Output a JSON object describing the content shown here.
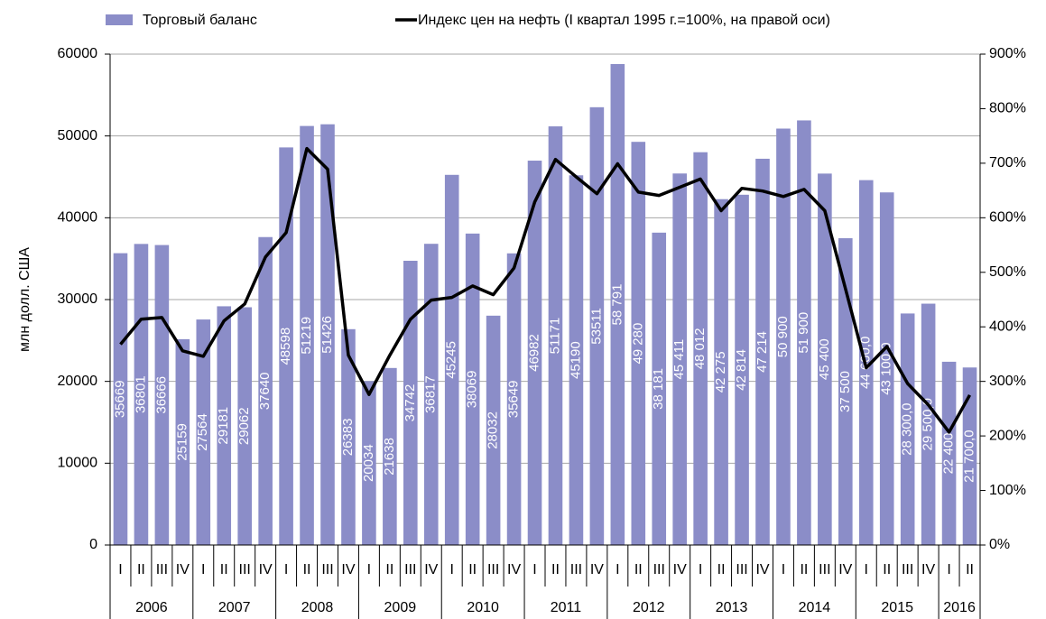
{
  "chart_data": {
    "type": "bar_line",
    "categories": [
      "I",
      "II",
      "III",
      "IV",
      "I",
      "II",
      "III",
      "IV",
      "I",
      "II",
      "III",
      "IV",
      "I",
      "II",
      "III",
      "IV",
      "I",
      "II",
      "III",
      "IV",
      "I",
      "II",
      "III",
      "IV",
      "I",
      "II",
      "III",
      "IV",
      "I",
      "II",
      "III",
      "IV",
      "I",
      "II",
      "III",
      "IV",
      "I",
      "II",
      "III",
      "IV",
      "I",
      "II"
    ],
    "x_groups": [
      "2006",
      "2007",
      "2008",
      "2009",
      "2010",
      "2011",
      "2012",
      "2013",
      "2014",
      "2015",
      "2016"
    ],
    "ylabel": "млн  долл. США",
    "ylim": [
      0,
      60000
    ],
    "yticks": [
      0,
      10000,
      20000,
      30000,
      40000,
      50000,
      60000
    ],
    "y2lim": [
      0,
      900
    ],
    "y2ticks": [
      {
        "value": 0,
        "label": "0%"
      },
      {
        "value": 100,
        "label": "100%"
      },
      {
        "value": 200,
        "label": "200%"
      },
      {
        "value": 300,
        "label": "300%"
      },
      {
        "value": 400,
        "label": "400%"
      },
      {
        "value": 500,
        "label": "500%"
      },
      {
        "value": 600,
        "label": "600%"
      },
      {
        "value": 700,
        "label": "700%"
      },
      {
        "value": 800,
        "label": "800%"
      },
      {
        "value": 900,
        "label": "900%"
      }
    ],
    "grid": true,
    "series": [
      {
        "name": "Торговый баланс",
        "color": "#8b8dc8",
        "values": [
          35669,
          36801,
          36666,
          25159,
          27564,
          29181,
          29062,
          37640,
          48598,
          51219,
          51426,
          26383,
          20034,
          21638,
          34742,
          36817,
          45245,
          38069,
          28032,
          35649,
          46982,
          51171,
          45190,
          53511,
          58791,
          49280,
          38181,
          45411,
          48012,
          42275,
          42814,
          47214,
          50900,
          51900,
          45400,
          37500,
          44600,
          43100,
          28300,
          29500,
          22400,
          21700
        ],
        "value_labels": [
          "35669",
          "36801",
          "36666",
          "25159",
          "27564",
          "29181",
          "29062",
          "37640",
          "48598",
          "51219",
          "51426",
          "26383",
          "20034",
          "21638",
          "34742",
          "36817",
          "45245",
          "38069",
          "28032",
          "35649",
          "46982",
          "51171",
          "45190",
          "53511",
          "58 791",
          "49 280",
          "38 181",
          "45 411",
          "48 012",
          "42 275",
          "42 814",
          "47 214",
          "50 900",
          "51 900",
          "45 400",
          "37 500",
          "44 600,0",
          "43 100,0",
          "28 300,0",
          "29 500,0",
          "22 400",
          "21 700,0"
        ]
      },
      {
        "name": "Индекс цен на нефть (I квартал 1995 г.=100%, на правой оси)",
        "color": "#000000",
        "axis": "y2",
        "values": [
          368,
          414,
          417,
          356,
          346,
          411,
          442,
          528,
          573,
          727,
          689,
          348,
          276,
          348,
          414,
          449,
          454,
          475,
          459,
          508,
          629,
          707,
          675,
          644,
          699,
          647,
          641,
          656,
          671,
          613,
          654,
          649,
          639,
          652,
          613,
          470,
          325,
          364,
          296,
          257,
          207,
          275
        ]
      }
    ]
  }
}
